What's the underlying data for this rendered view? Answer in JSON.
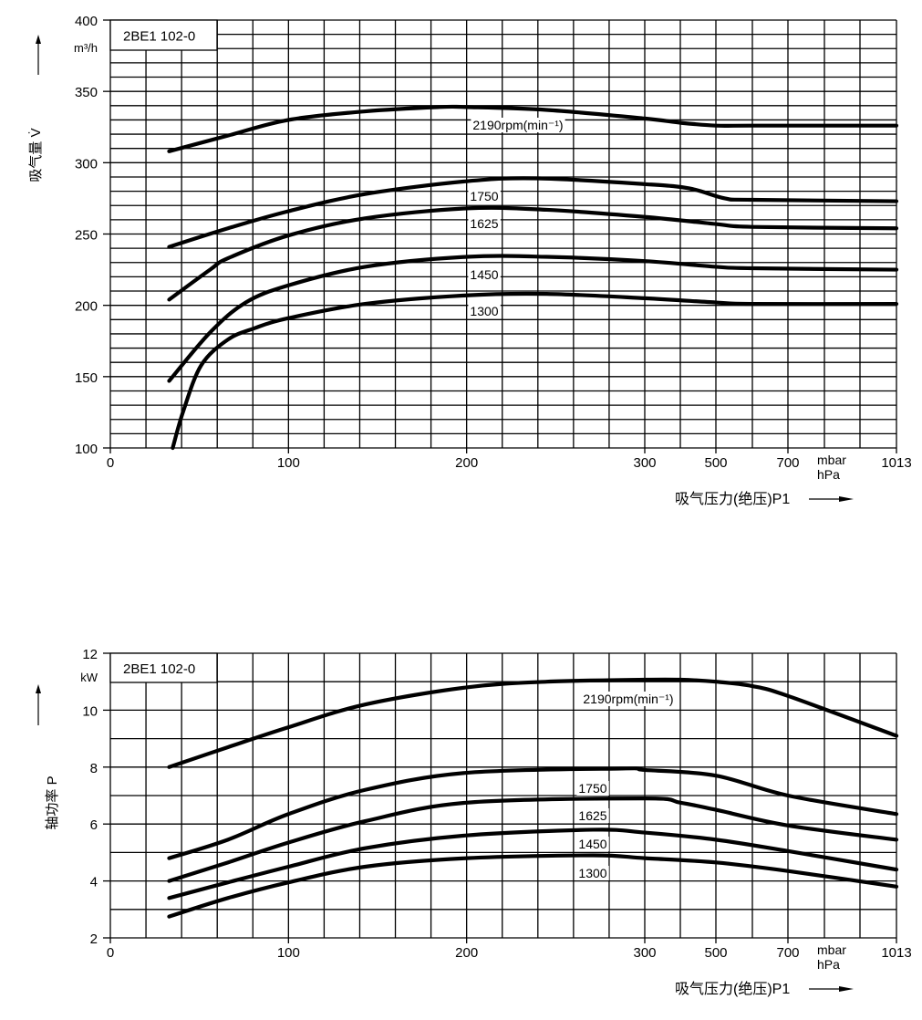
{
  "chart_data": [
    {
      "type": "line",
      "title": "2BE1 102-0",
      "ylabel": "吸气量 V̇",
      "yunit": "m³/h",
      "xlabel": "吸气压力(绝压)P1",
      "xunit_top": "mbar",
      "xunit_bottom": "hPa",
      "xticks": [
        0,
        100,
        200,
        300,
        500,
        700,
        1013
      ],
      "yticks": [
        100,
        150,
        200,
        250,
        300,
        350,
        400
      ],
      "ylim": [
        100,
        400
      ],
      "xlim": [
        0,
        1013
      ],
      "x_scale": "piecewise (linear 0-300, compressed 300-1013)",
      "grid": true,
      "series": [
        {
          "name": "2190",
          "label": "2190rpm(min⁻¹)",
          "x": [
            33,
            66,
            100,
            143,
            184,
            200,
            245,
            300,
            400,
            500,
            600,
            1013
          ],
          "y": [
            308,
            319,
            330,
            336,
            339,
            339,
            337,
            331,
            328,
            326,
            326,
            326
          ]
        },
        {
          "name": "1750",
          "label": "1750",
          "x": [
            33,
            66,
            100,
            143,
            200,
            240,
            300,
            425,
            525,
            600,
            1013
          ],
          "y": [
            241,
            254,
            266,
            278,
            287,
            289,
            285,
            282,
            275,
            274,
            273
          ]
        },
        {
          "name": "1625",
          "label": "1625",
          "x": [
            33,
            56,
            66,
            100,
            143,
            200,
            245,
            300,
            500,
            600,
            1013
          ],
          "y": [
            204,
            225,
            233,
            249,
            261,
            268,
            267,
            262,
            257,
            255,
            254
          ]
        },
        {
          "name": "1450",
          "label": "1450",
          "x": [
            33,
            56,
            76,
            100,
            143,
            200,
            245,
            300,
            500,
            600,
            1013
          ],
          "y": [
            147,
            181,
            202,
            214,
            227,
            234,
            234,
            231,
            227,
            226,
            225
          ]
        },
        {
          "name": "1300",
          "label": "1300",
          "x": [
            35,
            41,
            51,
            66,
            81,
            100,
            143,
            200,
            245,
            300,
            500,
            600,
            1013
          ],
          "y": [
            100,
            126,
            158,
            176,
            184,
            191,
            201,
            207,
            208,
            205,
            202,
            201,
            201
          ]
        }
      ]
    },
    {
      "type": "line",
      "title": "2BE1 102-0",
      "ylabel": "轴功率 P",
      "yunit": "kW",
      "xlabel": "吸气压力(绝压)P1",
      "xunit_top": "mbar",
      "xunit_bottom": "hPa",
      "xticks": [
        0,
        100,
        200,
        300,
        500,
        700,
        1013
      ],
      "yticks": [
        2,
        4,
        6,
        8,
        10,
        12
      ],
      "ylim": [
        2,
        12
      ],
      "xlim": [
        0,
        1013
      ],
      "x_scale": "piecewise (linear 0-300, compressed 300-1013)",
      "grid": true,
      "series": [
        {
          "name": "2190",
          "label": "2190rpm(min⁻¹)",
          "x": [
            33,
            66,
            100,
            143,
            200,
            245,
            300,
            400,
            500,
            600,
            700,
            1013
          ],
          "y": [
            8.0,
            8.7,
            9.4,
            10.2,
            10.8,
            11.0,
            11.07,
            11.07,
            11.0,
            10.85,
            10.5,
            9.1
          ]
        },
        {
          "name": "1750",
          "label": "1750",
          "x": [
            33,
            66,
            100,
            143,
            200,
            287,
            300,
            500,
            700,
            1013
          ],
          "y": [
            4.8,
            5.45,
            6.35,
            7.2,
            7.8,
            7.95,
            7.9,
            7.7,
            7.0,
            6.35
          ]
        },
        {
          "name": "1625",
          "label": "1625",
          "x": [
            33,
            66,
            100,
            143,
            200,
            300,
            400,
            500,
            700,
            1013
          ],
          "y": [
            4.0,
            4.65,
            5.35,
            6.1,
            6.75,
            6.9,
            6.75,
            6.5,
            5.95,
            5.45
          ]
        },
        {
          "name": "1450",
          "label": "1450",
          "x": [
            33,
            66,
            100,
            143,
            200,
            271,
            300,
            500,
            700,
            1013
          ],
          "y": [
            3.4,
            3.95,
            4.5,
            5.15,
            5.6,
            5.8,
            5.7,
            5.45,
            5.05,
            4.4
          ]
        },
        {
          "name": "1300",
          "label": "1300",
          "x": [
            33,
            66,
            100,
            143,
            200,
            271,
            300,
            500,
            700,
            1013
          ],
          "y": [
            2.75,
            3.4,
            3.95,
            4.5,
            4.8,
            4.9,
            4.8,
            4.65,
            4.35,
            3.8
          ]
        }
      ]
    }
  ]
}
